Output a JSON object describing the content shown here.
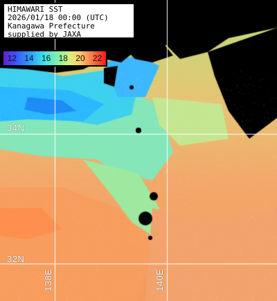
{
  "title": {
    "line1": "HIMAWARI SST",
    "line2": "2026/01/18 00:00 (UTC)",
    "line3": "Kanagawa Prefecture",
    "line4": "supplied by JAXA"
  },
  "color_scale": {
    "ticks": [
      "12",
      "14",
      "16",
      "18",
      "20",
      "22"
    ],
    "colors": [
      "#5f22cc",
      "#3b55ff",
      "#2aa0ff",
      "#42e3e6",
      "#88f0a5",
      "#d6f07d",
      "#ffcf6f",
      "#ff8b52",
      "#ff4a2b",
      "#ee1c1c"
    ]
  },
  "grid": {
    "lat_labels": [
      "34N",
      "32N"
    ],
    "lon_labels": [
      "138E",
      "140E"
    ],
    "line_color": "#ffffff"
  },
  "colors": {
    "land": "#000000",
    "cold_sea": "#36c7ff",
    "mid_sea": "#72e6c8",
    "warm_sea": "#f3a86a",
    "hot_sea": "#ff9b58"
  }
}
